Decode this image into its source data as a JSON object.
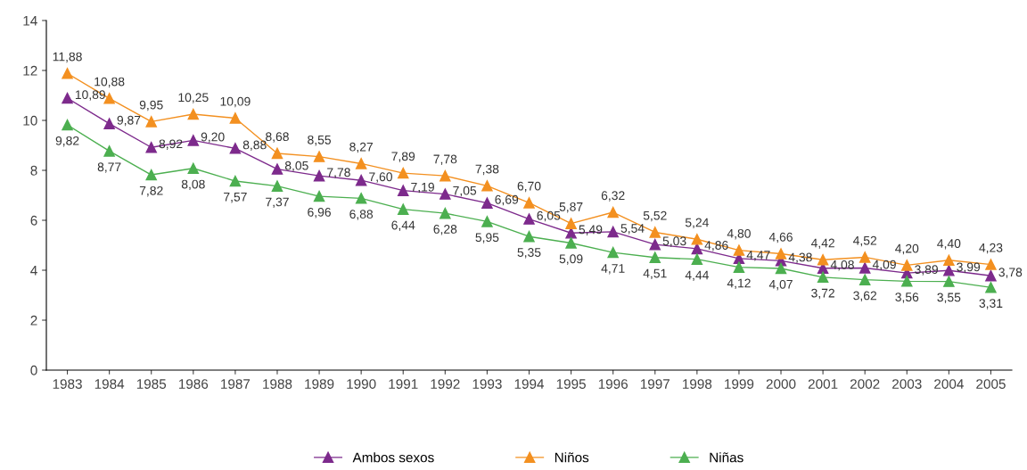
{
  "chart_data": {
    "type": "line",
    "categories": [
      "1983",
      "1984",
      "1985",
      "1986",
      "1987",
      "1988",
      "1989",
      "1990",
      "1991",
      "1992",
      "1993",
      "1994",
      "1995",
      "1996",
      "1997",
      "1998",
      "1999",
      "2000",
      "2001",
      "2002",
      "2003",
      "2004",
      "2005"
    ],
    "ylim": [
      0,
      14
    ],
    "yticks": [
      0,
      2,
      4,
      6,
      8,
      10,
      12,
      14
    ],
    "grid": false,
    "legend": "bottom",
    "marker": "triangle",
    "line_style": "solid",
    "series": [
      {
        "name": "Ambos sexos",
        "color": "#7d2a8c",
        "values": [
          10.89,
          9.87,
          8.92,
          9.2,
          8.88,
          8.05,
          7.78,
          7.6,
          7.19,
          7.05,
          6.69,
          6.05,
          5.49,
          5.54,
          5.03,
          4.86,
          4.47,
          4.38,
          4.08,
          4.09,
          3.89,
          3.99,
          3.78
        ],
        "value_labels": [
          "10,89",
          "9,87",
          "8,92",
          "9,20",
          "8,88",
          "8,05",
          "7,78",
          "7,60",
          "7,19",
          "7,05",
          "6,69",
          "6,05",
          "5,49",
          "5,54",
          "5,03",
          "4,86",
          "4,47",
          "4,38",
          "4,08",
          "4,09",
          "3,89",
          "3,99",
          "3,78"
        ]
      },
      {
        "name": "Niños",
        "color": "#f39020",
        "values": [
          11.88,
          10.88,
          9.95,
          10.25,
          10.09,
          8.68,
          8.55,
          8.27,
          7.89,
          7.78,
          7.38,
          6.7,
          5.87,
          6.32,
          5.52,
          5.24,
          4.8,
          4.66,
          4.42,
          4.52,
          4.2,
          4.4,
          4.23
        ],
        "value_labels": [
          "11,88",
          "10,88",
          "9,95",
          "10,25",
          "10,09",
          "8,68",
          "8,55",
          "8,27",
          "7,89",
          "7,78",
          "7,38",
          "6,70",
          "5,87",
          "6,32",
          "5,52",
          "5,24",
          "4,80",
          "4,66",
          "4,42",
          "4,52",
          "4,20",
          "4,40",
          "4,23"
        ]
      },
      {
        "name": "Niñas",
        "color": "#4caf50",
        "values": [
          9.82,
          8.77,
          7.82,
          8.08,
          7.57,
          7.37,
          6.96,
          6.88,
          6.44,
          6.28,
          5.95,
          5.35,
          5.09,
          4.71,
          4.51,
          4.44,
          4.12,
          4.07,
          3.72,
          3.62,
          3.56,
          3.55,
          3.31
        ],
        "value_labels": [
          "9,82",
          "8,77",
          "7,82",
          "8,08",
          "7,57",
          "7,37",
          "6,96",
          "6,88",
          "6,44",
          "6,28",
          "5,95",
          "5,35",
          "5,09",
          "4,71",
          "4,51",
          "4,44",
          "4,12",
          "4,07",
          "3,72",
          "3,62",
          "3,56",
          "3,55",
          "3,31"
        ]
      }
    ]
  }
}
